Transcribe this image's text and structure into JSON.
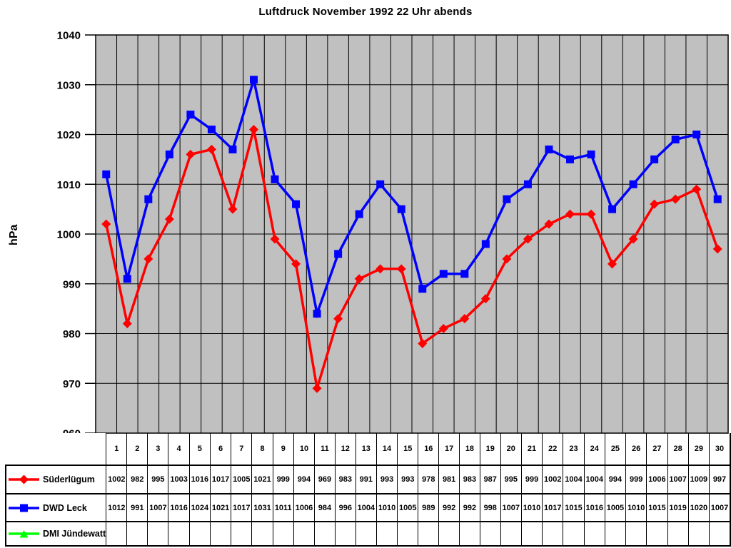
{
  "title": "Luftdruck November 1992 22 Uhr abends",
  "chart_data": {
    "type": "line",
    "title": "Luftdruck November 1992 22 Uhr abends",
    "xlabel": "",
    "ylabel": "hPa",
    "ylim": [
      960,
      1040
    ],
    "ytick_step": 10,
    "plot_bg": "#C0C0C0",
    "grid": true,
    "legend_position": "table-left",
    "categories": [
      1,
      2,
      3,
      4,
      5,
      6,
      7,
      8,
      9,
      10,
      11,
      12,
      13,
      14,
      15,
      16,
      17,
      18,
      19,
      20,
      21,
      22,
      23,
      24,
      25,
      26,
      27,
      28,
      29,
      30
    ],
    "series": [
      {
        "name": "Süderlügum",
        "color": "#FF0000",
        "marker": "diamond",
        "values": [
          1002,
          982,
          995,
          1003,
          1016,
          1017,
          1005,
          1021,
          999,
          994,
          969,
          983,
          991,
          993,
          993,
          978,
          981,
          983,
          987,
          995,
          999,
          1002,
          1004,
          1004,
          994,
          999,
          1006,
          1007,
          1009,
          997
        ]
      },
      {
        "name": "DWD Leck",
        "color": "#0000FF",
        "marker": "square",
        "values": [
          1012,
          991,
          1007,
          1016,
          1024,
          1021,
          1017,
          1031,
          1011,
          1006,
          984,
          996,
          1004,
          1010,
          1005,
          989,
          992,
          992,
          998,
          1007,
          1010,
          1017,
          1015,
          1016,
          1005,
          1010,
          1015,
          1019,
          1020,
          1007
        ]
      },
      {
        "name": "DMI Jündewatt",
        "color": "#00FF00",
        "marker": "triangle",
        "values": []
      }
    ]
  }
}
